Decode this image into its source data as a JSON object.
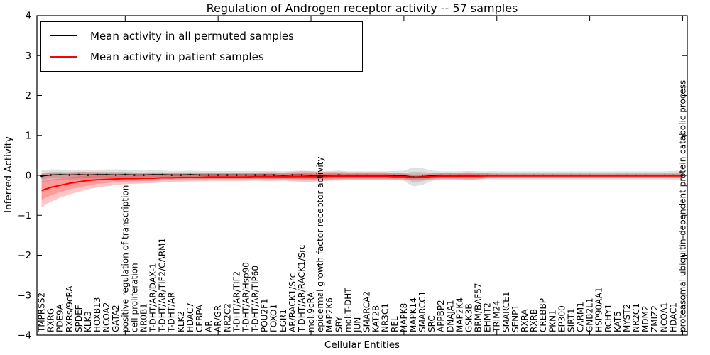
{
  "figure": {
    "title": "Regulation of Androgen receptor activity -- 57 samples"
  },
  "legend": {
    "position": "upper left",
    "items": [
      {
        "label": "Mean activity in all permuted samples",
        "color": "#000000"
      },
      {
        "label": "Mean activity in patient samples",
        "color": "#ff0000"
      }
    ]
  },
  "chart_data": {
    "type": "line",
    "title": "Regulation of Androgen receptor activity -- 57 samples",
    "xlabel": "Cellular Entities",
    "ylabel": "Inferred Activity",
    "ylim": [
      -4,
      4
    ],
    "grid": false,
    "legend_position": "upper left",
    "ytick_values": [
      4,
      3,
      2,
      1,
      0,
      -1,
      -2,
      -3,
      -4
    ],
    "ytick_labels": [
      "4",
      "3",
      "2",
      "1",
      "0",
      "−1",
      "−2",
      "−3",
      "−4"
    ],
    "categories": [
      "TMPRSS2",
      "RXRG",
      "PDE9A",
      "RXRs/9cRA",
      "SPDEF",
      "KLK3",
      "HOXB13",
      "NCOA2",
      "GATA2",
      "positive regulation of transcription",
      "cell proliferation",
      "NR0B1",
      "T-DHT/AR/DAX-1",
      "T-DHT/AR/TIF2/CARM1",
      "T-DHT/AR",
      "KLK2",
      "HDAC7",
      "CEBPA",
      "AR",
      "AR/GR",
      "NR2C2",
      "T-DHT/AR/TIF2",
      "T-DHT/AR/Hsp90",
      "T-DHT/AR/TIP60",
      "POU2F1",
      "FOXO1",
      "EGR1",
      "AR/RACK1/Src",
      "T-DHT/AR/RACK1/Src",
      "mol:9cRA",
      "epidermal growth factor receptor activity",
      "MAP2K6",
      "SRY",
      "mol:T-DHT",
      "JUN",
      "SMARCA2",
      "KAT2B",
      "NR3C1",
      "REL",
      "MAPK8",
      "MAPK14",
      "SMARCC1",
      "SRC",
      "APPBP2",
      "DNAJA1",
      "MAP2K4",
      "GSK3B",
      "BRM/BAF57",
      "EHMT2",
      "TRIM24",
      "SMARCE1",
      "SENP1",
      "RXRA",
      "RXRB",
      "CREBBP",
      "PKN1",
      "EP300",
      "SIRT1",
      "CARM1",
      "GNB2L1",
      "HSP90AA1",
      "RCHY1",
      "KAT5",
      "MYST2",
      "NR2C1",
      "MDM2",
      "ZMIZ2",
      "NCOA1",
      "HDAC1",
      "proteasomal ubiquitin-dependent protein catabolic process"
    ],
    "series": [
      {
        "name": "Mean activity in all permuted samples",
        "line_color": "#000000",
        "band_color": "rgba(0,0,0,0.12)",
        "markers": true,
        "values": [
          -0.02,
          0.01,
          0.02,
          0.01,
          0.02,
          0.01,
          0.02,
          0.02,
          0.01,
          0.02,
          0.01,
          0.01,
          0.02,
          0.02,
          0.01,
          0.01,
          0.02,
          0.01,
          0.01,
          0.01,
          0.01,
          0.01,
          0.01,
          0.01,
          0.01,
          0.01,
          0.0,
          0.01,
          0.01,
          0.0,
          0.0,
          0.0,
          0.01,
          0.0,
          0.0,
          0.0,
          0.0,
          0.0,
          0.0,
          -0.01,
          -0.04,
          -0.03,
          -0.01,
          0.0,
          0.0,
          0.0,
          0.0,
          0.0,
          0.0,
          0.0,
          0.0,
          0.0,
          0.0,
          0.0,
          0.0,
          0.0,
          0.0,
          0.0,
          0.0,
          0.0,
          0.0,
          0.0,
          0.0,
          0.0,
          0.0,
          0.0,
          0.0,
          0.0,
          0.0,
          0.0
        ],
        "std": [
          0.15,
          0.14,
          0.13,
          0.12,
          0.12,
          0.12,
          0.12,
          0.13,
          0.14,
          0.13,
          0.12,
          0.11,
          0.11,
          0.1,
          0.1,
          0.1,
          0.1,
          0.1,
          0.1,
          0.1,
          0.1,
          0.1,
          0.1,
          0.1,
          0.1,
          0.1,
          0.1,
          0.1,
          0.11,
          0.11,
          0.11,
          0.11,
          0.11,
          0.1,
          0.1,
          0.1,
          0.1,
          0.1,
          0.11,
          0.13,
          0.24,
          0.21,
          0.13,
          0.1,
          0.1,
          0.1,
          0.11,
          0.1,
          0.1,
          0.1,
          0.1,
          0.1,
          0.1,
          0.1,
          0.1,
          0.1,
          0.1,
          0.1,
          0.1,
          0.1,
          0.1,
          0.1,
          0.1,
          0.1,
          0.1,
          0.1,
          0.1,
          0.1,
          0.11,
          0.12
        ]
      },
      {
        "name": "Mean activity in patient samples",
        "line_color": "#ff0000",
        "band_color": "rgba(255,0,0,0.22)",
        "markers": false,
        "values": [
          -0.38,
          -0.3,
          -0.25,
          -0.2,
          -0.16,
          -0.13,
          -0.11,
          -0.1,
          -0.09,
          -0.08,
          -0.08,
          -0.07,
          -0.07,
          -0.06,
          -0.06,
          -0.05,
          -0.05,
          -0.05,
          -0.04,
          -0.04,
          -0.04,
          -0.04,
          -0.04,
          -0.03,
          -0.03,
          -0.03,
          -0.03,
          -0.03,
          -0.03,
          -0.03,
          -0.03,
          -0.02,
          -0.02,
          -0.02,
          -0.02,
          -0.02,
          -0.02,
          -0.02,
          -0.03,
          -0.03,
          -0.05,
          -0.04,
          -0.03,
          -0.02,
          -0.02,
          -0.02,
          -0.02,
          -0.02,
          -0.01,
          -0.01,
          -0.01,
          -0.01,
          -0.01,
          -0.01,
          -0.01,
          -0.01,
          -0.01,
          -0.01,
          -0.01,
          -0.01,
          -0.01,
          -0.01,
          -0.01,
          -0.01,
          -0.01,
          -0.01,
          -0.01,
          -0.01,
          -0.01,
          -0.01
        ],
        "std": [
          0.42,
          0.36,
          0.31,
          0.28,
          0.25,
          0.22,
          0.19,
          0.17,
          0.15,
          0.14,
          0.13,
          0.13,
          0.12,
          0.12,
          0.11,
          0.11,
          0.1,
          0.1,
          0.1,
          0.1,
          0.1,
          0.1,
          0.1,
          0.1,
          0.11,
          0.11,
          0.1,
          0.12,
          0.13,
          0.13,
          0.12,
          0.11,
          0.11,
          0.1,
          0.1,
          0.1,
          0.1,
          0.1,
          0.09,
          0.08,
          0.07,
          0.07,
          0.08,
          0.08,
          0.08,
          0.09,
          0.1,
          0.08,
          0.06,
          0.05,
          0.05,
          0.05,
          0.05,
          0.05,
          0.05,
          0.05,
          0.05,
          0.05,
          0.05,
          0.05,
          0.05,
          0.05,
          0.05,
          0.05,
          0.05,
          0.05,
          0.05,
          0.05,
          0.05,
          0.06
        ]
      }
    ]
  }
}
